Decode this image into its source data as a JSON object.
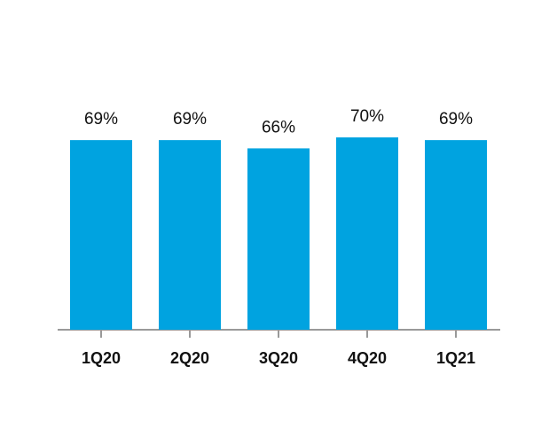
{
  "chart_data": {
    "type": "bar",
    "categories": [
      "1Q20",
      "2Q20",
      "3Q20",
      "4Q20",
      "1Q21"
    ],
    "values": [
      69,
      69,
      66,
      70,
      69
    ],
    "value_labels": [
      "69%",
      "69%",
      "66%",
      "70%",
      "69%"
    ],
    "color": "#00a3e0"
  }
}
